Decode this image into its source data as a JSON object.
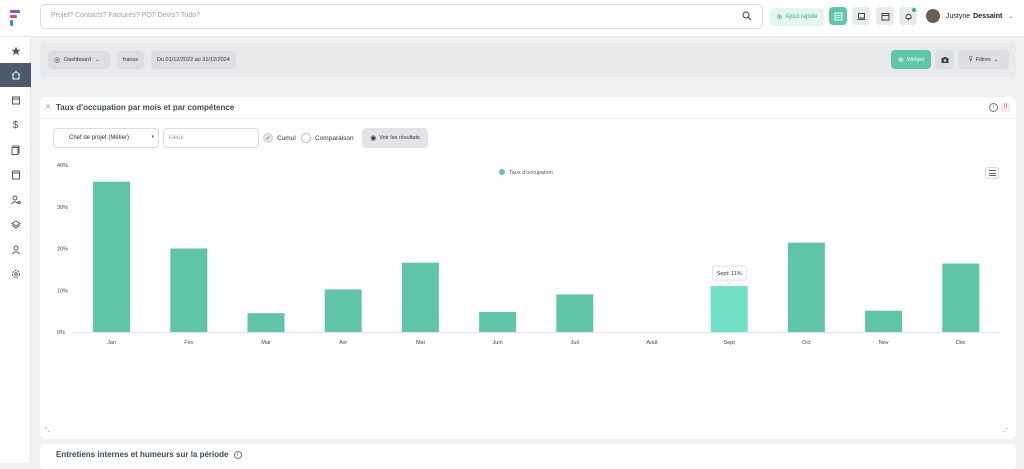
{
  "topbar": {
    "search_placeholder": "Projet? Contacts? Factures? PO? Devis? Todo?",
    "quick_add_label": "Ajout rapide",
    "user_first": "Justyne",
    "user_last": "Dessaint"
  },
  "filters": {
    "dashboard_label": "Dashboard",
    "country": "france",
    "date_range": "Du 01/12/2022 au 31/12/2024",
    "widget_label": "Widget",
    "filtres_label": "Filtres"
  },
  "panel": {
    "title": "Taux d'occupation par mois et par compétence",
    "select_value": "Chef de projet (Métier)",
    "lieux_placeholder": "Lieux",
    "cumul_label": "Cumul",
    "comparaison_label": "Comparaison",
    "voir_label": "Voir les résultats",
    "badge": "0"
  },
  "chart_data": {
    "type": "bar",
    "categories": [
      "Jan",
      "Fév",
      "Mar",
      "Avr",
      "Mai",
      "Juin",
      "Juil",
      "Août",
      "Sept",
      "Oct",
      "Nov",
      "Déc"
    ],
    "series": [
      {
        "name": "Taux d'occupation",
        "values": [
          36,
          20,
          4.5,
          10.2,
          16.6,
          4.8,
          9,
          0,
          11,
          21.4,
          5.1,
          16.4
        ]
      }
    ],
    "ylim": [
      0,
      40
    ],
    "yticks": [
      "0%",
      "10%",
      "20%",
      "30%",
      "40%"
    ],
    "ytick_values": [
      0,
      10,
      20,
      30,
      40
    ],
    "tooltip": "Sept: 11%",
    "highlight_index": 8,
    "legend": "top-center",
    "bar_color": "#5fc4a8",
    "highlight_color": "#72e0c6"
  },
  "panel2": {
    "title": "Entretiens internes et humeurs sur la période"
  }
}
